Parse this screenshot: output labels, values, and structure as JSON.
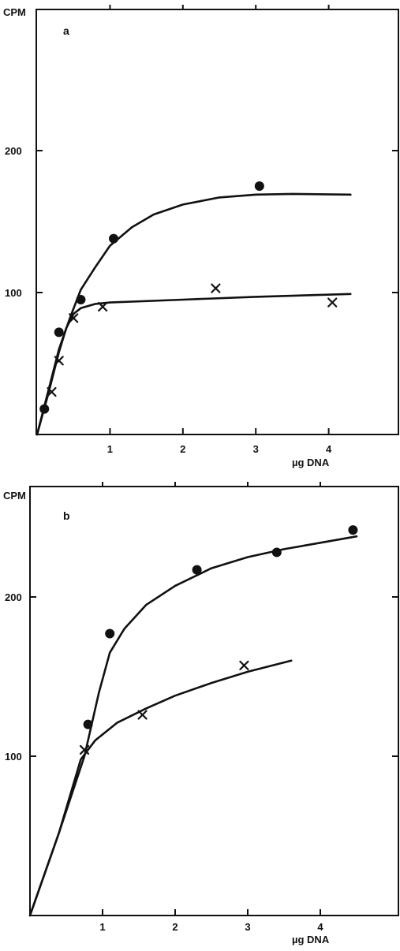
{
  "chart_data": [
    {
      "type": "scatter",
      "panel_label": "a",
      "ylabel": "CPM",
      "xlabel": "µg DNA",
      "xlim": [
        0,
        5
      ],
      "ylim": [
        0,
        300
      ],
      "x_ticks": [
        "1",
        "2",
        "3",
        "4"
      ],
      "y_ticks": [
        "100",
        "200"
      ],
      "series": [
        {
          "marker": "filled-circle",
          "points": [
            [
              0.1,
              18
            ],
            [
              0.3,
              72
            ],
            [
              0.6,
              95
            ],
            [
              1.05,
              138
            ],
            [
              3.05,
              175
            ]
          ],
          "fit_curve": [
            [
              0,
              0
            ],
            [
              0.15,
              30
            ],
            [
              0.3,
              60
            ],
            [
              0.45,
              82
            ],
            [
              0.6,
              102
            ],
            [
              0.8,
              118
            ],
            [
              1.0,
              133
            ],
            [
              1.3,
              146
            ],
            [
              1.6,
              155
            ],
            [
              2.0,
              162
            ],
            [
              2.5,
              167
            ],
            [
              3.0,
              169
            ],
            [
              3.5,
              169.5
            ],
            [
              4.3,
              169
            ]
          ]
        },
        {
          "marker": "x",
          "points": [
            [
              0.2,
              30
            ],
            [
              0.3,
              52
            ],
            [
              0.5,
              82
            ],
            [
              0.9,
              90
            ],
            [
              2.45,
              103
            ],
            [
              4.05,
              93
            ]
          ],
          "fit_curve": [
            [
              0,
              0
            ],
            [
              0.15,
              28
            ],
            [
              0.3,
              58
            ],
            [
              0.4,
              75
            ],
            [
              0.5,
              85
            ],
            [
              0.6,
              89
            ],
            [
              0.8,
              92
            ],
            [
              1.0,
              93
            ],
            [
              2.0,
              95
            ],
            [
              3.0,
              97
            ],
            [
              4.3,
              99
            ]
          ]
        }
      ]
    },
    {
      "type": "scatter",
      "panel_label": "b",
      "ylabel": "CPM",
      "xlabel": "µg DNA",
      "xlim": [
        0,
        5
      ],
      "ylim": [
        0,
        300
      ],
      "x_ticks": [
        "1",
        "2",
        "3",
        "4"
      ],
      "y_ticks": [
        "100",
        "200"
      ],
      "series": [
        {
          "marker": "filled-circle",
          "points": [
            [
              0.8,
              120
            ],
            [
              1.1,
              177
            ],
            [
              2.3,
              217
            ],
            [
              3.4,
              228
            ],
            [
              4.45,
              242
            ]
          ],
          "fit_curve": [
            [
              0,
              0
            ],
            [
              0.4,
              52
            ],
            [
              0.75,
              100
            ],
            [
              0.95,
              140
            ],
            [
              1.1,
              165
            ],
            [
              1.3,
              180
            ],
            [
              1.6,
              195
            ],
            [
              2.0,
              207
            ],
            [
              2.5,
              218
            ],
            [
              3.0,
              225
            ],
            [
              3.5,
              230
            ],
            [
              4.0,
              234
            ],
            [
              4.5,
              238
            ]
          ]
        },
        {
          "marker": "x",
          "points": [
            [
              0.75,
              104
            ],
            [
              1.55,
              126
            ],
            [
              2.95,
              157
            ]
          ],
          "fit_curve": [
            [
              0,
              0
            ],
            [
              0.4,
              52
            ],
            [
              0.7,
              98
            ],
            [
              0.9,
              110
            ],
            [
              1.2,
              121
            ],
            [
              1.6,
              130
            ],
            [
              2.0,
              138
            ],
            [
              2.5,
              146
            ],
            [
              3.0,
              153
            ],
            [
              3.6,
              160
            ]
          ]
        }
      ]
    }
  ]
}
